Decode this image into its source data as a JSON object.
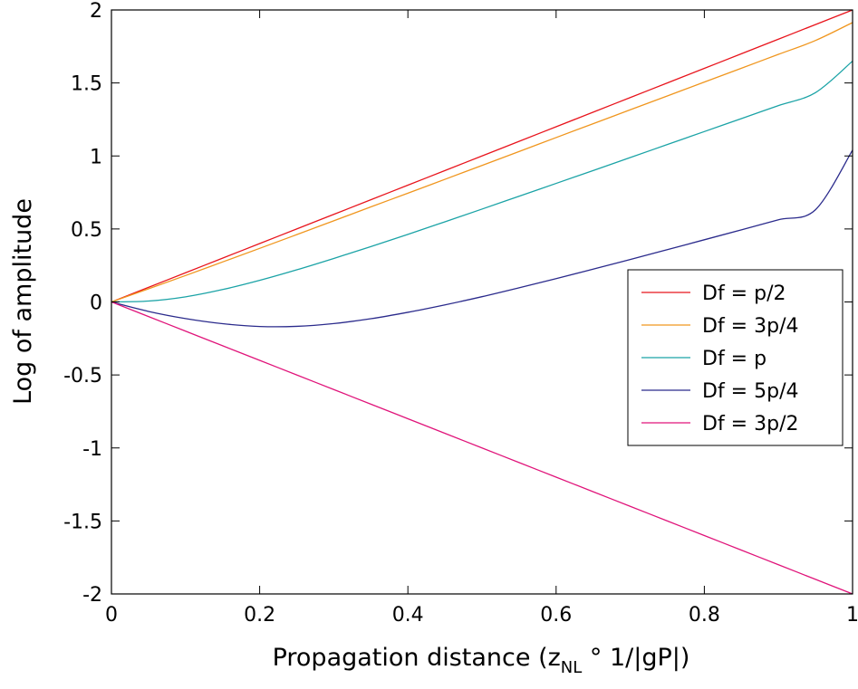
{
  "chart_data": {
    "type": "line",
    "title": "",
    "xlabel": "Propagation distance (z",
    "xlabel_sub": "NL",
    "xlabel_tail": " ° 1/|gP|)",
    "ylabel": "Log of amplitude",
    "xlim": [
      0,
      1
    ],
    "ylim": [
      -2,
      2
    ],
    "xticks": [
      0,
      0.2,
      0.4,
      0.6,
      0.8,
      1
    ],
    "xtick_labels": [
      "0",
      "0.2",
      "0.4",
      "0.6",
      "0.8",
      "1"
    ],
    "yticks": [
      -2,
      -1.5,
      -1,
      -0.5,
      0,
      0.5,
      1,
      1.5,
      2
    ],
    "ytick_labels": [
      "-2",
      "-1.5",
      "-1",
      "-0.5",
      "0",
      "0.5",
      "1",
      "1.5",
      "2"
    ],
    "grid": false,
    "legend_position": "right",
    "x": [
      0,
      0.05,
      0.1,
      0.15,
      0.2,
      0.25,
      0.3,
      0.35,
      0.4,
      0.45,
      0.5,
      0.55,
      0.6,
      0.65,
      0.7,
      0.75,
      0.8,
      0.85,
      0.9,
      0.95,
      1
    ],
    "series": [
      {
        "name": "Df = p/2",
        "color": "#e8141c",
        "values": [
          0,
          0.1,
          0.2,
          0.3,
          0.4,
          0.5,
          0.6,
          0.7,
          0.8,
          0.9,
          1.0,
          1.1,
          1.2,
          1.3,
          1.4,
          1.5,
          1.6,
          1.7,
          1.8,
          1.9,
          2.0
        ]
      },
      {
        "name": "Df = 3p/4",
        "color": "#f0961e",
        "values": [
          0,
          0.09,
          0.181,
          0.274,
          0.367,
          0.461,
          0.556,
          0.651,
          0.745,
          0.84,
          0.935,
          1.03,
          1.126,
          1.221,
          1.316,
          1.411,
          1.506,
          1.601,
          1.696,
          1.791,
          1.914
        ]
      },
      {
        "name": "Df = p",
        "color": "#1ba3a6",
        "values": [
          0,
          0.006,
          0.035,
          0.085,
          0.148,
          0.22,
          0.298,
          0.379,
          0.463,
          0.549,
          0.636,
          0.724,
          0.812,
          0.9,
          0.989,
          1.078,
          1.167,
          1.256,
          1.345,
          1.434,
          1.65
        ]
      },
      {
        "name": "Df = 5p/4",
        "color": "#2b2b8c",
        "values": [
          0,
          -0.065,
          -0.114,
          -0.149,
          -0.168,
          -0.167,
          -0.148,
          -0.115,
          -0.071,
          -0.02,
          0.036,
          0.097,
          0.16,
          0.225,
          0.291,
          0.358,
          0.426,
          0.494,
          0.563,
          0.632,
          1.04
        ]
      },
      {
        "name": "Df = 3p/2",
        "color": "#e0147a",
        "values": [
          0,
          -0.1,
          -0.2,
          -0.3,
          -0.4,
          -0.5,
          -0.6,
          -0.7,
          -0.8,
          -0.9,
          -1.0,
          -1.1,
          -1.2,
          -1.3,
          -1.4,
          -1.5,
          -1.6,
          -1.7,
          -1.8,
          -1.9,
          -2.0
        ]
      }
    ]
  }
}
